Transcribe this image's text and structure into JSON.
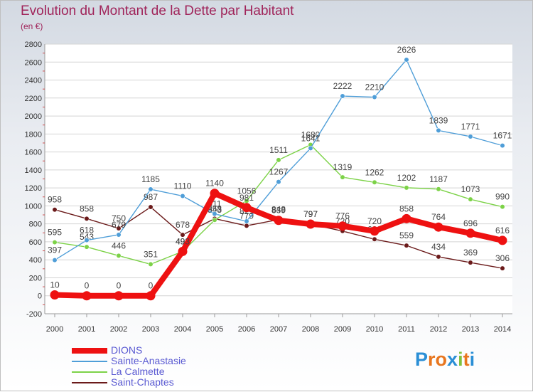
{
  "header": {
    "title": "Evolution du Montant de la Dette par Habitant",
    "unit": "(en €)"
  },
  "logo": {
    "text": "Proxiti",
    "letters": [
      "P",
      "r",
      "o",
      "x",
      "i",
      "t",
      "i"
    ],
    "colors": [
      "#2b8fd6",
      "#e8761f",
      "#e8761f",
      "#2b8fd6",
      "#7fc23e",
      "#e8761f",
      "#2b8fd6"
    ]
  },
  "chart_data": {
    "type": "line",
    "title": "Evolution du Montant de la Dette par Habitant",
    "subtitle": "(en €)",
    "xlabel": "",
    "ylabel": "",
    "x": [
      2000,
      2001,
      2002,
      2003,
      2004,
      2005,
      2006,
      2007,
      2008,
      2009,
      2010,
      2011,
      2012,
      2013,
      2014
    ],
    "ylim": [
      -200,
      2800
    ],
    "yticks": [
      -200,
      0,
      200,
      400,
      600,
      800,
      1000,
      1200,
      1400,
      1600,
      1800,
      2000,
      2200,
      2400,
      2600,
      2800
    ],
    "grid": true,
    "legend_position": "bottom-left",
    "series": [
      {
        "name": "Saint-Chaptes",
        "color": "#6b1a1a",
        "values": [
          958,
          858,
          750,
          987,
          678,
          858,
          779,
          848,
          797,
          720,
          629,
          559,
          434,
          369,
          306
        ]
      },
      {
        "name": "La Calmette",
        "color": "#7cd247",
        "values": [
          595,
          543,
          446,
          351,
          493,
          843,
          1056,
          1511,
          1680,
          1319,
          1262,
          1202,
          1187,
          1073,
          990
        ]
      },
      {
        "name": "Sainte-Anastasie",
        "color": "#4f9ed8",
        "values": [
          397,
          618,
          679,
          1185,
          1110,
          911,
          829,
          1267,
          1641,
          2222,
          2210,
          2626,
          1839,
          1771,
          1671
        ]
      },
      {
        "name": "DIONS",
        "color": "#ee1111",
        "values": [
          10,
          0,
          0,
          0,
          493,
          1140,
          981,
          839,
          797,
          776,
          720,
          858,
          764,
          696,
          616
        ]
      }
    ]
  }
}
